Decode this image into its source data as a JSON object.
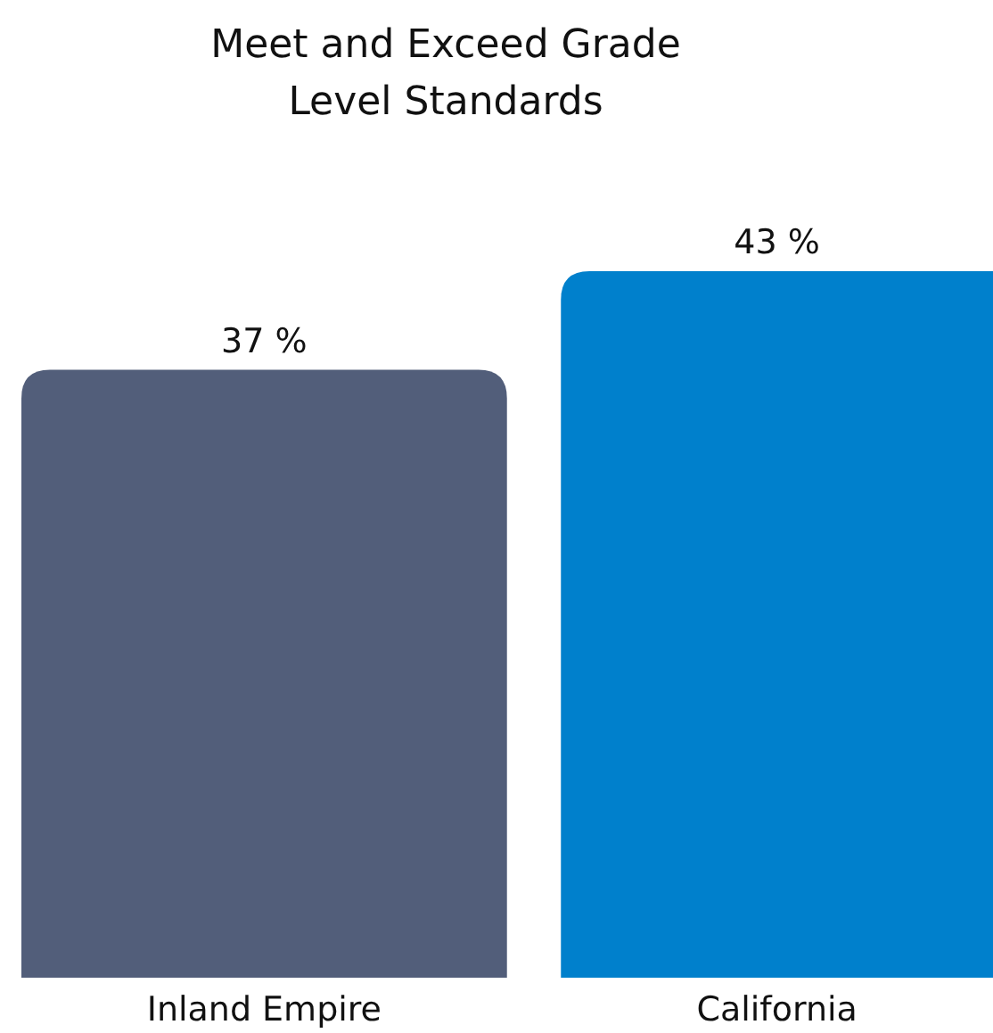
{
  "chart_data": {
    "type": "bar",
    "title": "Meet and Exceed Grade Level Standards",
    "categories": [
      "Inland Empire",
      "California"
    ],
    "values": [
      37,
      43
    ],
    "colors": [
      "#525e7a",
      "#0080cc"
    ],
    "value_labels": [
      "37 %",
      "43 %"
    ]
  }
}
